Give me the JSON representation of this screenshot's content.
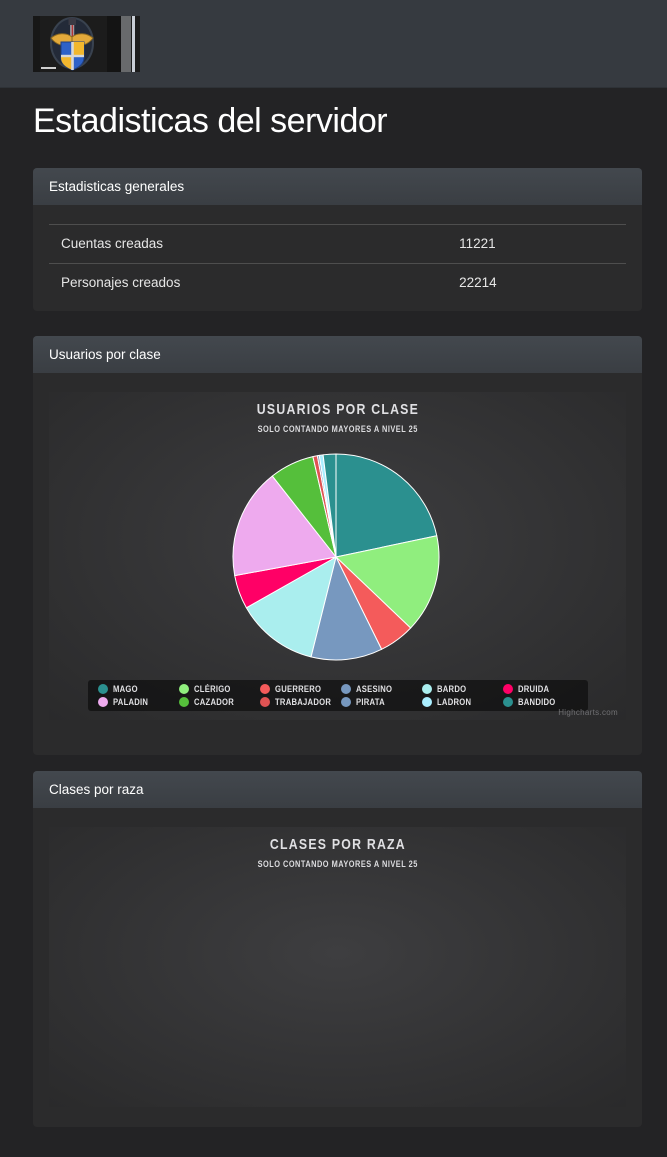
{
  "heading": "Estadisticas del servidor",
  "navbar": {
    "logo": "argentum-shield-logo"
  },
  "stats_panel": {
    "title": "Estadisticas generales",
    "rows": [
      {
        "label": "Cuentas creadas",
        "value": "11221"
      },
      {
        "label": "Personajes creados",
        "value": "22214"
      }
    ]
  },
  "class_panel": {
    "title": "Usuarios por clase"
  },
  "race_panel": {
    "title": "Clases por raza"
  },
  "credits": "Highcharts.com",
  "colors": {
    "navbar_bg": "#363a40",
    "page_bg": "#232325",
    "panel_header_bg": "#3d4146",
    "panel_body_bg": "#2b2b2c",
    "chart_bg_inner": "#3e3e40",
    "chart_bg_outer": "#2a2a2b",
    "legend_bg": "rgba(0,0,0,0.5)",
    "chart_text": "#e0e0e3",
    "heading_text": "#ffffff"
  },
  "chart_data": [
    {
      "type": "pie",
      "title": "USUARIOS POR CLASE",
      "subtitle": "SOLO CONTANDO MAYORES A NIVEL 25",
      "legend_position": "bottom",
      "slices": [
        {
          "name": "Mago",
          "percent": 21.7,
          "color": "#2b908f"
        },
        {
          "name": "Clérigo",
          "percent": 15.4,
          "color": "#90ee7e"
        },
        {
          "name": "Guerrero",
          "percent": 5.6,
          "color": "#f45b5b"
        },
        {
          "name": "Asesino",
          "percent": 11.2,
          "color": "#7798bf"
        },
        {
          "name": "Bardo",
          "percent": 12.9,
          "color": "#aaeeee"
        },
        {
          "name": "Druida",
          "percent": 5.3,
          "color": "#ff0066"
        },
        {
          "name": "Paladin",
          "percent": 17.3,
          "color": "#eeaaee"
        },
        {
          "name": "Cazador",
          "percent": 7.0,
          "color": "#55bf3b"
        },
        {
          "name": "Trabajador",
          "percent": 0.7,
          "color": "#df5353"
        },
        {
          "name": "Pirata",
          "percent": 0.3,
          "color": "#7798bf"
        },
        {
          "name": "Ladron",
          "percent": 0.6,
          "color": "#aaeeff"
        },
        {
          "name": "Bandido",
          "percent": 2.0,
          "color": "#2b908f"
        }
      ]
    },
    {
      "type": "pie",
      "title": "CLASES POR RAZA",
      "subtitle": "SOLO CONTANDO MAYORES A NIVEL 25"
    }
  ]
}
